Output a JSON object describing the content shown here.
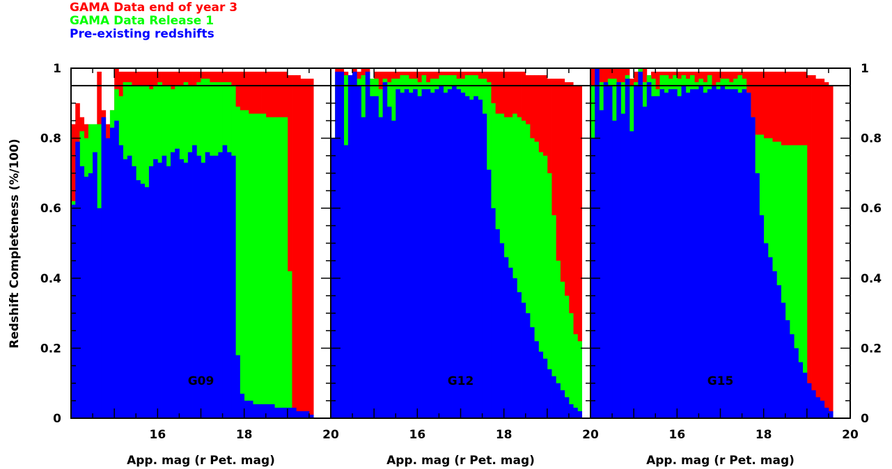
{
  "legend": [
    {
      "label": "GAMA Data end of year 3",
      "color": "#ff0000"
    },
    {
      "label": "GAMA Data Release 1",
      "color": "#00ff00"
    },
    {
      "label": "Pre-existing redshifts",
      "color": "#0000ff"
    }
  ],
  "colors": {
    "red": "#ff0000",
    "green": "#00ff00",
    "blue": "#0000ff"
  },
  "chart_data": [
    {
      "type": "area",
      "panel_label": "G09",
      "xlabel": "App. mag (r Pet. mag)",
      "ylabel": "Redshift Completeness (%/100)",
      "xlim": [
        14,
        20
      ],
      "ylim": [
        0,
        1
      ],
      "x_ticks": [
        "16",
        "18",
        "20"
      ],
      "y_ticks": [
        "0",
        "0.2",
        "0.4",
        "0.6",
        "0.8",
        "1"
      ],
      "reference_line_y": 0.95,
      "x": [
        14.0,
        14.1,
        14.2,
        14.3,
        14.4,
        14.5,
        14.6,
        14.7,
        14.8,
        14.9,
        15.0,
        15.1,
        15.2,
        15.3,
        15.4,
        15.5,
        15.6,
        15.7,
        15.8,
        15.9,
        16.0,
        16.1,
        16.2,
        16.3,
        16.4,
        16.5,
        16.6,
        16.7,
        16.8,
        16.9,
        17.0,
        17.1,
        17.2,
        17.3,
        17.4,
        17.5,
        17.6,
        17.7,
        17.8,
        17.9,
        18.0,
        18.1,
        18.2,
        18.3,
        18.4,
        18.5,
        18.6,
        18.7,
        18.8,
        18.9,
        19.0,
        19.1,
        19.2,
        19.3,
        19.4,
        19.5
      ],
      "series": [
        {
          "name": "GAMA Data end of year 3",
          "values": [
            0.84,
            0.9,
            0.86,
            0.84,
            0.8,
            0.7,
            0.99,
            0.88,
            0.84,
            0.88,
            1.0,
            0.99,
            0.99,
            0.99,
            0.99,
            0.99,
            0.99,
            0.99,
            0.99,
            0.99,
            0.99,
            0.99,
            0.99,
            0.99,
            0.99,
            0.99,
            0.99,
            0.99,
            0.99,
            0.99,
            0.99,
            0.99,
            0.99,
            0.99,
            0.99,
            0.99,
            0.99,
            0.99,
            0.99,
            0.99,
            0.99,
            0.99,
            0.99,
            0.99,
            0.99,
            0.99,
            0.99,
            0.99,
            0.99,
            0.99,
            0.98,
            0.98,
            0.98,
            0.97,
            0.97,
            0.97
          ]
        },
        {
          "name": "GAMA Data Release 1",
          "values": [
            0.62,
            0.62,
            0.82,
            0.8,
            0.84,
            0.84,
            0.84,
            0.83,
            0.72,
            0.88,
            0.94,
            0.92,
            0.96,
            0.96,
            0.95,
            0.95,
            0.95,
            0.95,
            0.94,
            0.95,
            0.96,
            0.95,
            0.95,
            0.94,
            0.95,
            0.95,
            0.96,
            0.95,
            0.95,
            0.96,
            0.97,
            0.97,
            0.96,
            0.96,
            0.96,
            0.96,
            0.96,
            0.95,
            0.89,
            0.88,
            0.88,
            0.87,
            0.87,
            0.87,
            0.87,
            0.86,
            0.86,
            0.86,
            0.86,
            0.86,
            0.42,
            0.0,
            0.0,
            0.0,
            0.0,
            0.0
          ]
        },
        {
          "name": "Pre-existing redshifts",
          "values": [
            0.61,
            0.79,
            0.72,
            0.69,
            0.7,
            0.76,
            0.6,
            0.86,
            0.8,
            0.83,
            0.85,
            0.78,
            0.74,
            0.75,
            0.72,
            0.68,
            0.67,
            0.66,
            0.72,
            0.74,
            0.73,
            0.75,
            0.72,
            0.76,
            0.77,
            0.74,
            0.73,
            0.76,
            0.78,
            0.75,
            0.73,
            0.76,
            0.75,
            0.75,
            0.76,
            0.78,
            0.76,
            0.75,
            0.18,
            0.07,
            0.05,
            0.05,
            0.04,
            0.04,
            0.04,
            0.04,
            0.04,
            0.03,
            0.03,
            0.03,
            0.03,
            0.03,
            0.02,
            0.02,
            0.02,
            0.01
          ]
        }
      ]
    },
    {
      "type": "area",
      "panel_label": "G12",
      "xlabel": "App. mag (r Pet. mag)",
      "xlim": [
        14,
        20
      ],
      "ylim": [
        0,
        1
      ],
      "x_ticks": [
        "16",
        "18",
        "20"
      ],
      "reference_line_y": 0.95,
      "x": [
        14.0,
        14.1,
        14.2,
        14.3,
        14.4,
        14.5,
        14.6,
        14.7,
        14.8,
        14.9,
        15.0,
        15.1,
        15.2,
        15.3,
        15.4,
        15.5,
        15.6,
        15.7,
        15.8,
        15.9,
        16.0,
        16.1,
        16.2,
        16.3,
        16.4,
        16.5,
        16.6,
        16.7,
        16.8,
        16.9,
        17.0,
        17.1,
        17.2,
        17.3,
        17.4,
        17.5,
        17.6,
        17.7,
        17.8,
        17.9,
        18.0,
        18.1,
        18.2,
        18.3,
        18.4,
        18.5,
        18.6,
        18.7,
        18.8,
        18.9,
        19.0,
        19.1,
        19.2,
        19.3,
        19.4,
        19.5,
        19.6,
        19.7
      ],
      "series": [
        {
          "name": "GAMA Data end of year 3",
          "values": [
            0.8,
            1.0,
            1.0,
            0.99,
            0.98,
            1.0,
            0.99,
            1.0,
            1.0,
            0.97,
            0.99,
            0.99,
            0.99,
            0.99,
            0.99,
            0.99,
            0.99,
            0.99,
            0.99,
            0.99,
            0.99,
            0.99,
            0.99,
            0.99,
            0.99,
            0.99,
            0.99,
            0.99,
            0.99,
            0.99,
            0.99,
            0.99,
            0.99,
            0.99,
            0.99,
            0.99,
            0.99,
            0.99,
            0.99,
            0.99,
            0.99,
            0.99,
            0.99,
            0.99,
            0.99,
            0.98,
            0.98,
            0.98,
            0.98,
            0.98,
            0.97,
            0.97,
            0.97,
            0.97,
            0.96,
            0.96,
            0.95,
            0.95
          ]
        },
        {
          "name": "GAMA Data Release 1",
          "values": [
            0.8,
            0.98,
            0.98,
            0.98,
            0.98,
            0.98,
            0.97,
            0.98,
            0.99,
            0.97,
            0.97,
            0.94,
            0.97,
            0.96,
            0.97,
            0.97,
            0.98,
            0.98,
            0.97,
            0.97,
            0.96,
            0.98,
            0.96,
            0.97,
            0.97,
            0.98,
            0.98,
            0.98,
            0.98,
            0.97,
            0.97,
            0.98,
            0.98,
            0.98,
            0.97,
            0.97,
            0.96,
            0.9,
            0.87,
            0.87,
            0.86,
            0.86,
            0.87,
            0.86,
            0.85,
            0.84,
            0.8,
            0.79,
            0.76,
            0.75,
            0.7,
            0.58,
            0.45,
            0.39,
            0.35,
            0.3,
            0.24,
            0.22
          ]
        },
        {
          "name": "Pre-existing redshifts",
          "values": [
            0.8,
            0.99,
            0.99,
            0.78,
            0.98,
            0.99,
            0.95,
            0.86,
            0.99,
            0.92,
            0.92,
            0.86,
            0.96,
            0.89,
            0.85,
            0.94,
            0.93,
            0.94,
            0.93,
            0.94,
            0.92,
            0.94,
            0.94,
            0.93,
            0.94,
            0.95,
            0.93,
            0.94,
            0.95,
            0.94,
            0.93,
            0.92,
            0.91,
            0.92,
            0.91,
            0.87,
            0.71,
            0.6,
            0.54,
            0.5,
            0.46,
            0.43,
            0.4,
            0.36,
            0.33,
            0.3,
            0.26,
            0.22,
            0.19,
            0.17,
            0.14,
            0.12,
            0.1,
            0.08,
            0.06,
            0.04,
            0.03,
            0.02
          ]
        }
      ]
    },
    {
      "type": "area",
      "panel_label": "G15",
      "xlabel": "App. mag (r Pet. mag)",
      "xlim": [
        14,
        20
      ],
      "ylim": [
        0,
        1
      ],
      "x_ticks": [
        "16",
        "18",
        "20"
      ],
      "y_ticks_right": [
        "0",
        "0.2",
        "0.4",
        "0.6",
        "0.8",
        "1"
      ],
      "reference_line_y": 0.95,
      "x": [
        14.0,
        14.1,
        14.2,
        14.3,
        14.4,
        14.5,
        14.6,
        14.7,
        14.8,
        14.9,
        15.0,
        15.1,
        15.2,
        15.3,
        15.4,
        15.5,
        15.6,
        15.7,
        15.8,
        15.9,
        16.0,
        16.1,
        16.2,
        16.3,
        16.4,
        16.5,
        16.6,
        16.7,
        16.8,
        16.9,
        17.0,
        17.1,
        17.2,
        17.3,
        17.4,
        17.5,
        17.6,
        17.7,
        17.8,
        17.9,
        18.0,
        18.1,
        18.2,
        18.3,
        18.4,
        18.5,
        18.6,
        18.7,
        18.8,
        18.9,
        19.0,
        19.1,
        19.2,
        19.3,
        19.4,
        19.5
      ],
      "series": [
        {
          "name": "GAMA Data end of year 3",
          "values": [
            1.0,
            1.0,
            1.0,
            1.0,
            1.0,
            1.0,
            1.0,
            1.0,
            1.0,
            0.97,
            0.99,
            0.99,
            1.0,
            0.98,
            0.99,
            0.99,
            0.99,
            0.99,
            0.99,
            0.99,
            0.99,
            0.99,
            0.99,
            0.99,
            0.99,
            0.99,
            0.99,
            0.99,
            0.99,
            0.99,
            0.99,
            0.99,
            0.99,
            0.99,
            0.99,
            0.99,
            0.99,
            0.99,
            0.99,
            0.99,
            0.99,
            0.99,
            0.99,
            0.99,
            0.99,
            0.99,
            0.99,
            0.99,
            0.99,
            0.99,
            0.98,
            0.98,
            0.97,
            0.97,
            0.96,
            0.95
          ]
        },
        {
          "name": "GAMA Data Release 1",
          "values": [
            0.95,
            0.96,
            0.96,
            0.96,
            0.97,
            0.97,
            0.96,
            0.96,
            0.98,
            0.95,
            0.96,
            1.0,
            0.96,
            0.98,
            0.97,
            0.94,
            0.98,
            0.98,
            0.97,
            0.98,
            0.97,
            0.98,
            0.97,
            0.98,
            0.96,
            0.97,
            0.96,
            0.98,
            0.95,
            0.96,
            0.97,
            0.97,
            0.96,
            0.97,
            0.98,
            0.97,
            0.93,
            0.86,
            0.81,
            0.81,
            0.8,
            0.8,
            0.79,
            0.79,
            0.78,
            0.78,
            0.78,
            0.78,
            0.78,
            0.78,
            0.0,
            0.0,
            0.0,
            0.0,
            0.0,
            0.0
          ]
        },
        {
          "name": "Pre-existing redshifts",
          "values": [
            0.8,
            1.0,
            0.88,
            0.96,
            0.95,
            0.85,
            0.96,
            0.87,
            0.97,
            0.82,
            0.95,
            0.99,
            0.89,
            0.96,
            0.92,
            0.92,
            0.94,
            0.93,
            0.94,
            0.94,
            0.92,
            0.95,
            0.93,
            0.94,
            0.94,
            0.95,
            0.93,
            0.94,
            0.95,
            0.94,
            0.95,
            0.94,
            0.94,
            0.94,
            0.93,
            0.94,
            0.93,
            0.86,
            0.7,
            0.58,
            0.5,
            0.46,
            0.42,
            0.38,
            0.33,
            0.28,
            0.24,
            0.2,
            0.16,
            0.13,
            0.1,
            0.08,
            0.06,
            0.05,
            0.03,
            0.02
          ]
        }
      ]
    }
  ]
}
